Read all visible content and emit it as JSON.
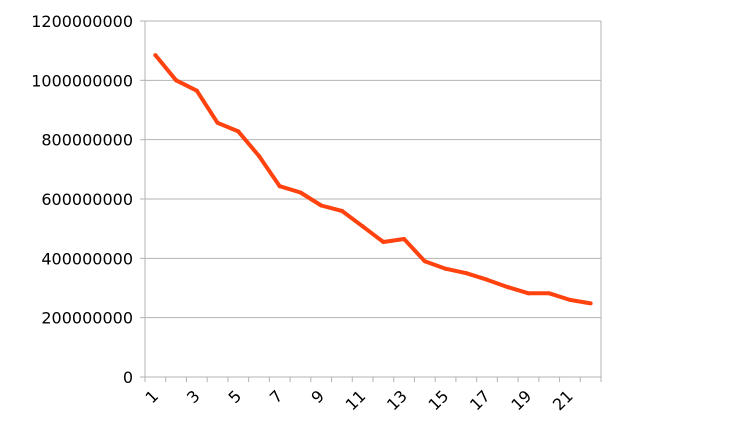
{
  "chart_data": {
    "type": "line",
    "x": [
      1,
      2,
      3,
      4,
      5,
      6,
      7,
      8,
      9,
      10,
      11,
      12,
      13,
      14,
      15,
      16,
      17,
      18,
      19,
      20,
      21,
      22
    ],
    "series": [
      {
        "values": [
          1085000000,
          1000000000,
          965000000,
          857000000,
          828000000,
          745000000,
          643000000,
          622000000,
          578000000,
          560000000,
          508000000,
          455000000,
          465000000,
          390000000,
          365000000,
          350000000,
          328000000,
          303000000,
          282000000,
          282000000,
          260000000,
          248000000
        ],
        "color": "#ff420e"
      }
    ],
    "x_tick_labels": [
      "1",
      "3",
      "5",
      "7",
      "9",
      "11",
      "13",
      "15",
      "17",
      "19",
      "21"
    ],
    "y_tick_labels": [
      "0",
      "200000000",
      "400000000",
      "600000000",
      "800000000",
      "1000000000",
      "1200000000"
    ],
    "ylim": [
      0,
      1200000000
    ],
    "grid": "horizontal",
    "legend": "none",
    "title": "",
    "xlabel": "",
    "ylabel": ""
  }
}
